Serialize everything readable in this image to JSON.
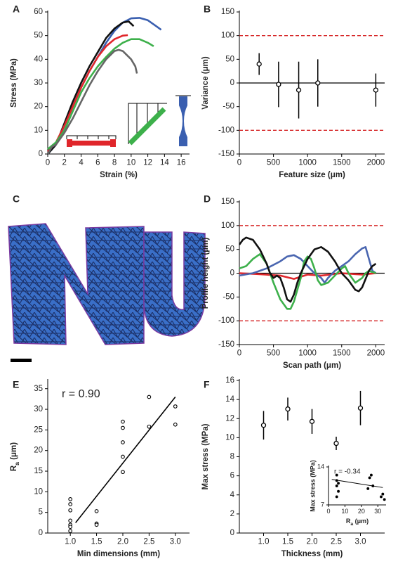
{
  "chart_data": [
    {
      "type": "line",
      "label": "A",
      "x_label": "Strain (%)",
      "y_label": "Stress (MPa)",
      "xlim": [
        0,
        17
      ],
      "xticks": [
        0,
        2,
        4,
        6,
        8,
        10,
        12,
        14,
        16
      ],
      "ylim": [
        0,
        60
      ],
      "yticks": [
        0,
        10,
        20,
        30,
        40,
        50,
        60
      ],
      "series": [
        {
          "color": "#3a5fb0",
          "x": [
            0,
            1,
            2,
            3,
            4,
            5,
            6,
            7,
            8,
            9,
            10,
            11,
            12,
            13,
            13.6
          ],
          "values": [
            0,
            4,
            12,
            20,
            28,
            35,
            41,
            47,
            52,
            55.5,
            57.3,
            57.5,
            56.5,
            54,
            52.5
          ]
        },
        {
          "color": "#111111",
          "x": [
            0,
            1,
            2,
            3,
            4,
            5,
            6,
            7,
            8,
            9,
            9.7,
            10.3
          ],
          "values": [
            0,
            4,
            13,
            22,
            30,
            37,
            43,
            49,
            53,
            55.5,
            56,
            54
          ]
        },
        {
          "color": "#e0262b",
          "x": [
            0,
            1,
            2,
            3,
            4,
            5,
            6,
            7,
            8,
            9,
            9.6
          ],
          "values": [
            1,
            5,
            12,
            20,
            28,
            35,
            41,
            45.5,
            48.5,
            50,
            50.2
          ]
        },
        {
          "color": "#3db04b",
          "x": [
            0,
            1,
            2,
            3,
            4,
            5,
            6,
            7,
            8,
            9,
            10,
            11,
            12,
            12.7
          ],
          "values": [
            2,
            5,
            10,
            18,
            26,
            32,
            37,
            41,
            44.5,
            47,
            48.5,
            48.5,
            47,
            45.5
          ]
        },
        {
          "color": "#666666",
          "x": [
            0,
            0.5,
            1,
            2,
            3,
            4,
            5,
            6,
            7,
            8,
            8.5,
            9,
            10,
            10.5,
            10.7
          ],
          "values": [
            0,
            3,
            4,
            9,
            15,
            22,
            29,
            35,
            40,
            43.5,
            44,
            43.5,
            40,
            37,
            34
          ]
        }
      ]
    },
    {
      "type": "errorbar",
      "label": "B",
      "x_label": "Feature size (μm)",
      "y_label": "Variance (μm)",
      "xlim": [
        0,
        2130
      ],
      "xticks": [
        0,
        500,
        1000,
        1500,
        2000
      ],
      "ylim": [
        -150,
        150
      ],
      "yticks": [
        -150,
        -100,
        -50,
        0,
        50,
        100,
        150
      ],
      "x": [
        290,
        575,
        870,
        1150,
        2000
      ],
      "values": [
        40,
        -3,
        -15,
        0,
        -15
      ],
      "errors": [
        23,
        48,
        60,
        50,
        35
      ],
      "reference_lines": [
        100,
        -100
      ],
      "reference_color": "#d62728",
      "zero_line": true
    },
    {
      "type": "image",
      "label": "C"
    },
    {
      "type": "line",
      "label": "D",
      "x_label": "Scan path (μm)",
      "y_label": "Profile height (μm)",
      "xlim": [
        0,
        2130
      ],
      "xticks": [
        0,
        500,
        1000,
        1500,
        2000
      ],
      "ylim": [
        -150,
        150
      ],
      "yticks": [
        -150,
        -100,
        -50,
        0,
        50,
        100,
        150
      ],
      "reference_lines": [
        100,
        -100
      ],
      "reference_color": "#d62728",
      "zero_line": true,
      "series": [
        {
          "color": "#e0262b",
          "x": [
            0,
            300,
            600,
            800,
            1000,
            1200,
            1500,
            1800,
            2000
          ],
          "values": [
            0,
            -2,
            -5,
            -12,
            -3,
            -5,
            0,
            -3,
            0
          ]
        },
        {
          "color": "#4a66b0",
          "x": [
            0,
            200,
            400,
            600,
            700,
            800,
            900,
            1000,
            1100,
            1200,
            1250,
            1300,
            1400,
            1500,
            1600,
            1700,
            1800,
            1850,
            1900,
            1950,
            2000
          ],
          "values": [
            -5,
            0,
            10,
            25,
            35,
            38,
            30,
            15,
            0,
            -10,
            -20,
            -10,
            5,
            15,
            25,
            40,
            52,
            55,
            30,
            5,
            0
          ]
        },
        {
          "color": "#3db04b",
          "x": [
            0,
            100,
            200,
            300,
            400,
            500,
            600,
            700,
            750,
            800,
            900,
            950,
            1000,
            1050,
            1100,
            1150,
            1200,
            1300,
            1400,
            1500,
            1550,
            1600,
            1700,
            1800,
            1850,
            1900,
            2000
          ],
          "values": [
            10,
            15,
            30,
            40,
            20,
            -20,
            -55,
            -75,
            -75,
            -60,
            -10,
            25,
            35,
            30,
            10,
            -15,
            -25,
            -20,
            -5,
            10,
            15,
            0,
            -20,
            -10,
            0,
            5,
            0
          ]
        },
        {
          "color": "#111111",
          "x": [
            0,
            50,
            100,
            200,
            300,
            400,
            450,
            500,
            550,
            600,
            650,
            700,
            750,
            800,
            850,
            900,
            1000,
            1100,
            1200,
            1300,
            1400,
            1500,
            1600,
            1700,
            1750,
            1800,
            1900,
            1950,
            2000
          ],
          "values": [
            60,
            70,
            75,
            70,
            50,
            20,
            0,
            -10,
            -5,
            -10,
            -30,
            -55,
            -60,
            -45,
            -20,
            0,
            30,
            50,
            55,
            45,
            25,
            0,
            -15,
            -35,
            -38,
            -30,
            5,
            15,
            20
          ]
        }
      ]
    },
    {
      "type": "scatter",
      "label": "E",
      "annotation": "r = 0.90",
      "x_label": "Min dimensions (mm)",
      "y_label": [
        "R",
        "a",
        " (μm)"
      ],
      "xlim": [
        0.57,
        3.27
      ],
      "xticks": [
        {
          "value": 1,
          "label": "1.0"
        },
        {
          "value": 1.5,
          "label": "1.5"
        },
        {
          "value": 2,
          "label": "2.0"
        },
        {
          "value": 2.5,
          "label": "2.5"
        },
        {
          "value": 3,
          "label": "3.0"
        }
      ],
      "ylim": [
        0,
        37
      ],
      "yticks": [
        0,
        5,
        10,
        15,
        20,
        25,
        30,
        35
      ],
      "x": [
        1,
        1,
        1,
        1,
        1,
        1,
        1,
        1.5,
        1.5,
        1.5,
        2,
        2,
        2,
        2,
        2,
        2.5,
        2.5,
        3,
        3
      ],
      "values": [
        8.2,
        7,
        5.5,
        3,
        2,
        1.5,
        0.5,
        5.3,
        2.3,
        2,
        27,
        25.5,
        22,
        18.5,
        14.8,
        33,
        25.8,
        30.7,
        26.3
      ],
      "fit_line": {
        "x": [
          1.1,
          3.0
        ],
        "values": [
          2.5,
          33
        ]
      }
    },
    {
      "type": "errorbar",
      "label": "F",
      "x_label": "Thickness (mm)",
      "y_label": "Max stress (MPa)",
      "xlim": [
        0.5,
        3.5
      ],
      "xticks": [
        {
          "value": 1,
          "label": "1.0"
        },
        {
          "value": 1.5,
          "label": "1.5"
        },
        {
          "value": 2,
          "label": "2.0"
        },
        {
          "value": 2.5,
          "label": "2.5"
        },
        {
          "value": 3,
          "label": "3.0"
        }
      ],
      "ylim": [
        0,
        16
      ],
      "yticks": [
        0,
        2,
        4,
        6,
        8,
        10,
        12,
        14,
        16
      ],
      "x": [
        1,
        1.5,
        2,
        2.5,
        3
      ],
      "values": [
        11.3,
        13.0,
        11.7,
        9.4,
        13.1
      ],
      "errors": [
        1.5,
        1.2,
        1.3,
        0.7,
        1.8
      ],
      "inset": {
        "type": "scatter",
        "annotation": "r = -0.34",
        "x_label": [
          "R",
          "a",
          " (μm)"
        ],
        "y_label": "Max stress (MPa)",
        "xlim": [
          0,
          35
        ],
        "xticks": [
          0,
          10,
          20,
          30
        ],
        "ylim": [
          7,
          14
        ],
        "yticks": [
          7,
          14
        ],
        "x": [
          5,
          5,
          6,
          5,
          6,
          5,
          26,
          25,
          27,
          24,
          33,
          32,
          34
        ],
        "values": [
          12.5,
          11.5,
          11,
          10.5,
          9.5,
          8.5,
          12.5,
          12,
          10.5,
          10,
          9,
          8.5,
          8
        ],
        "fit_line": {
          "x": [
            2,
            33
          ],
          "values": [
            11.7,
            10.2
          ]
        }
      }
    }
  ]
}
